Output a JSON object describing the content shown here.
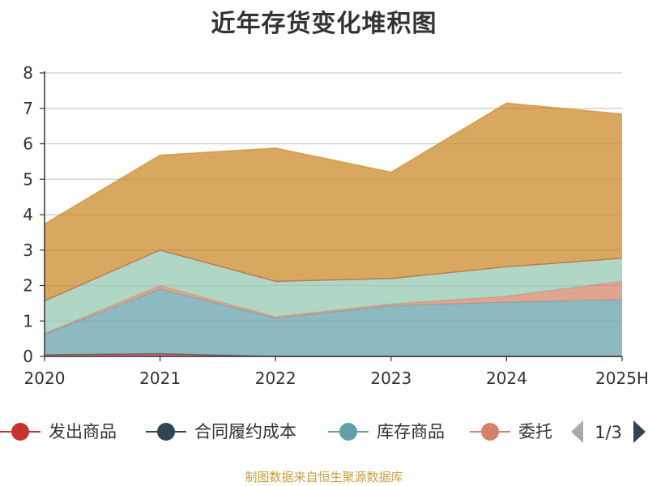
{
  "chart_data": {
    "type": "area",
    "stacked": true,
    "title": "近年存货变化堆积图",
    "xlabel": "",
    "ylabel": "",
    "categories": [
      "2020",
      "2021",
      "2022",
      "2023",
      "2024",
      "2025H"
    ],
    "ylim": [
      0,
      8
    ],
    "yticks": [
      "0",
      "1",
      "2",
      "3",
      "4",
      "5",
      "6",
      "7",
      "8"
    ],
    "grid": true,
    "series": [
      {
        "name": "发出商品",
        "color": "#c23531",
        "values": [
          0.05,
          0.08,
          0.0,
          0.0,
          0.0,
          0.0
        ]
      },
      {
        "name": "合同履约成本",
        "color": "#2f4554",
        "values": [
          0.0,
          0.0,
          0.0,
          0.0,
          0.0,
          0.0
        ]
      },
      {
        "name": "库存商品",
        "color": "#61a0a8",
        "values": [
          0.57,
          1.82,
          1.08,
          1.43,
          1.53,
          1.6
        ]
      },
      {
        "name": "委托加工物资",
        "color": "#d48265",
        "values": [
          0.03,
          0.1,
          0.04,
          0.05,
          0.17,
          0.52
        ]
      },
      {
        "name": "",
        "color": "#91c7ae",
        "values": [
          0.92,
          1.0,
          1.0,
          0.72,
          0.83,
          0.65
        ]
      },
      {
        "name": "",
        "color": "#c23531",
        "values": [
          0.0,
          0.0,
          0.0,
          0.0,
          0.0,
          0.0
        ]
      },
      {
        "name": "",
        "color": "#ca8622",
        "values": [
          2.17,
          2.68,
          3.76,
          3.0,
          4.62,
          4.07
        ]
      }
    ]
  },
  "legend": {
    "items": [
      {
        "label": "发出商品",
        "color": "#c23531"
      },
      {
        "label": "合同履约成本",
        "color": "#2f4554"
      },
      {
        "label": "库存商品",
        "color": "#61a0a8"
      },
      {
        "label": "委托",
        "color": "#d48265"
      }
    ],
    "page": "1/3",
    "prev_color": "#aaaaaa",
    "next_color": "#2f4554"
  },
  "source": "制图数据来自恒生聚源数据库",
  "icons": {
    "prev": "triangle-left-icon",
    "next": "triangle-right-icon"
  }
}
